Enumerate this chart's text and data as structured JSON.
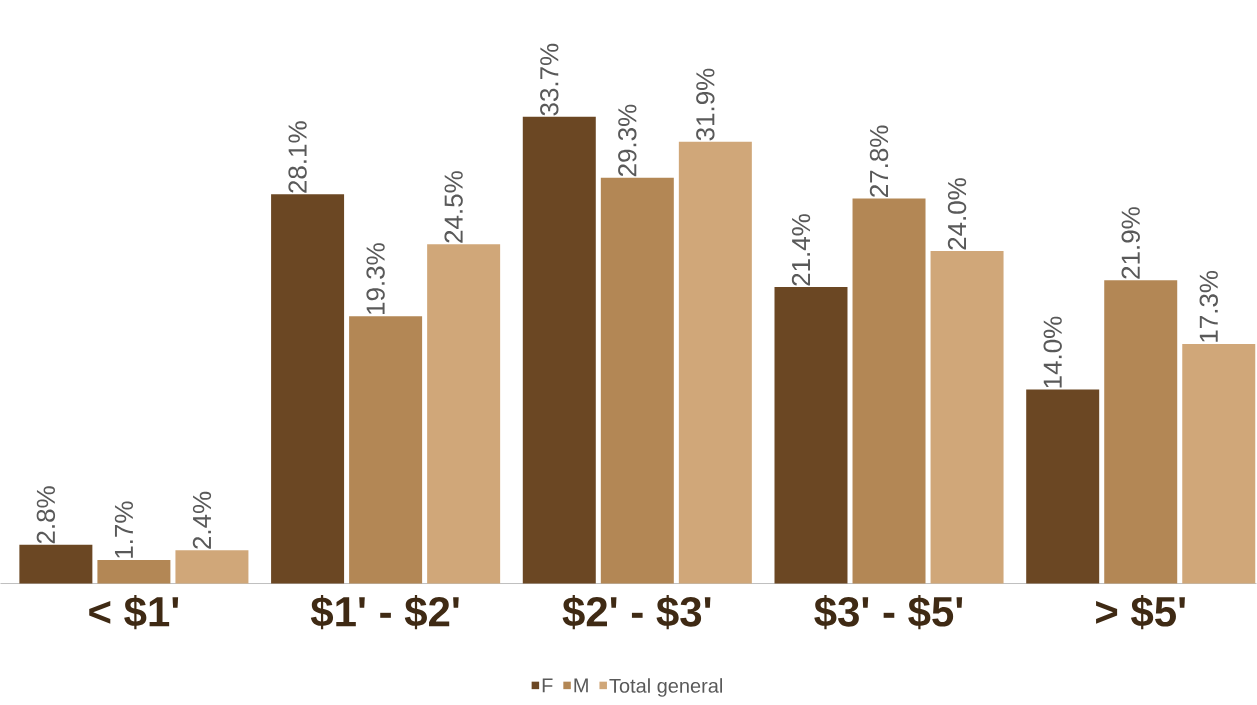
{
  "chart_data": {
    "type": "bar",
    "categories": [
      "< $1'",
      "$1' - $2'",
      "$2' - $3'",
      "$3' - $5'",
      "> $5'"
    ],
    "series": [
      {
        "name": "F",
        "color": "#6b4723",
        "values": [
          2.8,
          28.1,
          33.7,
          21.4,
          14.0
        ],
        "value_labels": [
          "2.8%",
          "28.1%",
          "33.7%",
          "21.4%",
          "14.0%"
        ]
      },
      {
        "name": "M",
        "color": "#b38755",
        "values": [
          1.7,
          19.3,
          29.3,
          27.8,
          21.9
        ],
        "value_labels": [
          "1.7%",
          "19.3%",
          "29.3%",
          "27.8%",
          "21.9%"
        ]
      },
      {
        "name": "Total general",
        "color": "#d0a779",
        "values": [
          2.4,
          24.5,
          31.9,
          24.0,
          17.3
        ],
        "value_labels": [
          "2.4%",
          "24.5%",
          "31.9%",
          "24.0%",
          "17.3%"
        ]
      }
    ],
    "legend": "bottom"
  }
}
